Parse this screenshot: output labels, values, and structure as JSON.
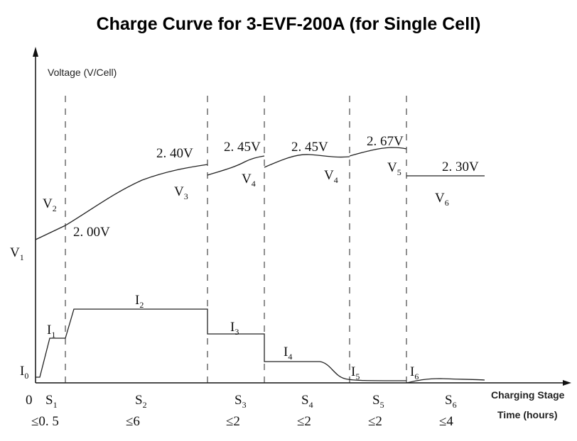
{
  "title": "Charge Curve for 3-EVF-200A (for Single Cell)",
  "y_axis_label": "Voltage (V/Cell)",
  "x_axis_label_stage": "Charging Stage",
  "x_axis_label_time": "Time (hours)",
  "origin_label": "0",
  "voltage_values": [
    "2. 00V",
    "2. 40V",
    "2. 45V",
    "2. 45V",
    "2. 67V",
    "2. 30V"
  ],
  "voltage_symbols": [
    {
      "main": "V",
      "sub": "1"
    },
    {
      "main": "V",
      "sub": "2"
    },
    {
      "main": "V",
      "sub": "3"
    },
    {
      "main": "V",
      "sub": "4"
    },
    {
      "main": "V",
      "sub": "4"
    },
    {
      "main": "V",
      "sub": "5"
    },
    {
      "main": "V",
      "sub": "6"
    }
  ],
  "current_symbols": [
    {
      "main": "I",
      "sub": "0"
    },
    {
      "main": "I",
      "sub": "1"
    },
    {
      "main": "I",
      "sub": "2"
    },
    {
      "main": "I",
      "sub": "3"
    },
    {
      "main": "I",
      "sub": "4"
    },
    {
      "main": "I",
      "sub": "5"
    },
    {
      "main": "I",
      "sub": "6"
    }
  ],
  "stages": [
    {
      "main": "S",
      "sub": "1",
      "time": "≤0. 5"
    },
    {
      "main": "S",
      "sub": "2",
      "time": "≤6"
    },
    {
      "main": "S",
      "sub": "3",
      "time": "≤2"
    },
    {
      "main": "S",
      "sub": "4",
      "time": "≤2"
    },
    {
      "main": "S",
      "sub": "5",
      "time": "≤2"
    },
    {
      "main": "S",
      "sub": "6",
      "time": "≤4"
    }
  ]
}
